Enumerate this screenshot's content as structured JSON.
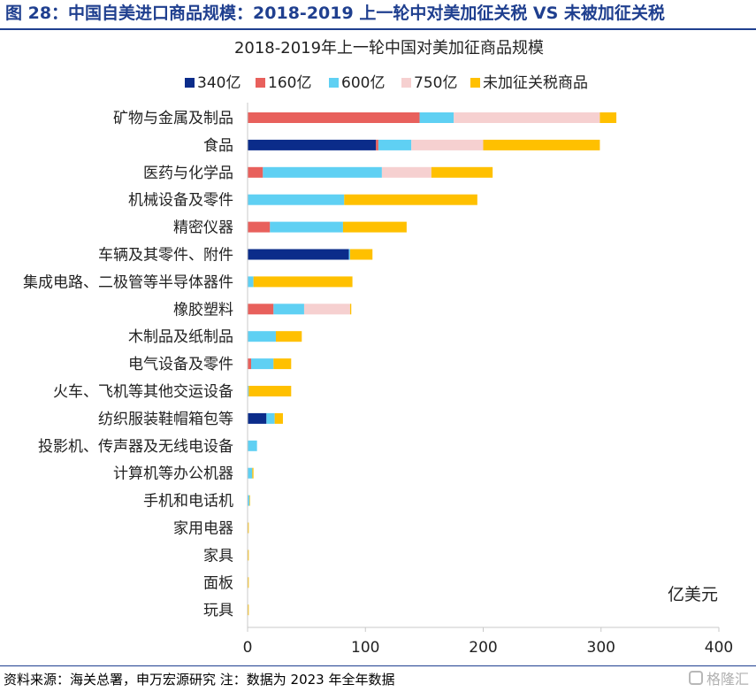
{
  "figure_title": "图 28：中国自美进口商品规模：2018-2019 上一轮中对美加征关税 VS 未被加征关税",
  "source_note": "资料来源：海关总署，申万宏源研究  注：数据为 2023 年全年数据",
  "watermark": "格隆汇",
  "colors": {
    "title_blue": "#1f3f8f",
    "s340": "#0b2c8a",
    "s160": "#e8605c",
    "s600": "#5fd0f3",
    "s750": "#f6d0d0",
    "s_none": "#ffc000",
    "axis": "#c8c8c8"
  },
  "chart_data": {
    "type": "bar",
    "orientation": "horizontal",
    "stacked": true,
    "title": "2018-2019年上一轮中国对美加征商品规模",
    "unit_label": "亿美元",
    "xlim": [
      0,
      400
    ],
    "xticks": [
      0,
      100,
      200,
      300,
      400
    ],
    "legend_position": "top",
    "categories": [
      "矿物与金属及制品",
      "食品",
      "医药与化学品",
      "机械设备及零件",
      "精密仪器",
      "车辆及其零件、附件",
      "集成电路、二极管等半导体器件",
      "橡胶塑料",
      "木制品及纸制品",
      "电气设备及零件",
      "火车、飞机等其他交运设备",
      "纺织服装鞋帽箱包等",
      "投影机、传声器及无线电设备",
      "计算机等办公机器",
      "手机和电话机",
      "家用电器",
      "家具",
      "面板",
      "玩具"
    ],
    "series": [
      {
        "name": "340亿",
        "color": "#0b2c8a",
        "values": [
          0,
          109,
          0,
          0,
          0,
          86,
          0,
          0,
          0,
          0,
          0,
          16,
          0,
          0,
          0,
          0,
          0,
          0,
          0
        ]
      },
      {
        "name": "160亿",
        "color": "#e8605c",
        "values": [
          146,
          2,
          13,
          0,
          19,
          0,
          0,
          22,
          0,
          3,
          0,
          0,
          0,
          0,
          0,
          0,
          0,
          0,
          0
        ]
      },
      {
        "name": "600亿",
        "color": "#5fd0f3",
        "values": [
          29,
          28,
          101,
          82,
          62,
          1,
          5,
          26,
          24,
          19,
          1,
          7,
          8,
          4,
          1.5,
          0,
          0,
          0,
          0
        ]
      },
      {
        "name": "750亿",
        "color": "#f6d0d0",
        "values": [
          124,
          61,
          42,
          0,
          0,
          0,
          0,
          39,
          0,
          0,
          0,
          0,
          0,
          0,
          0,
          0,
          0,
          0,
          0
        ]
      },
      {
        "name": "未加征关税商品",
        "color": "#ffc000",
        "values": [
          14,
          99,
          52,
          113,
          54,
          19,
          84,
          1,
          22,
          15,
          36,
          7,
          0,
          1,
          0.5,
          1,
          1,
          1,
          1
        ]
      }
    ]
  }
}
